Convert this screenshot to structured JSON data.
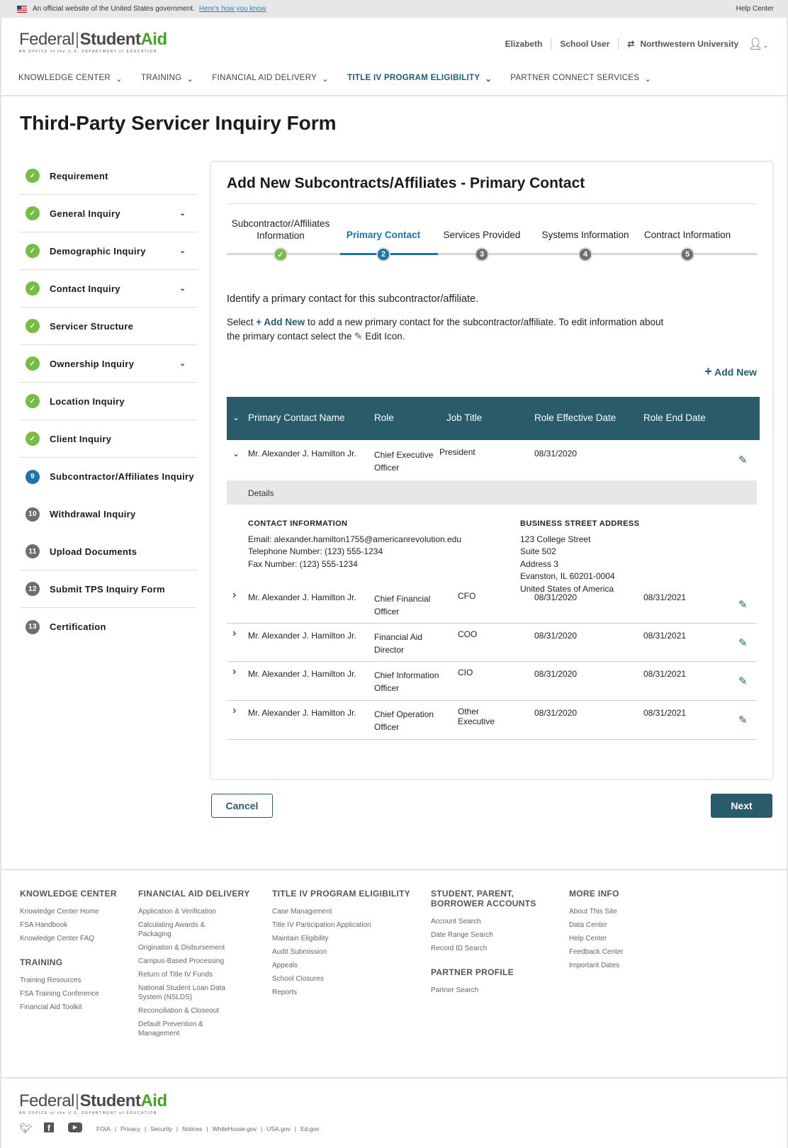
{
  "banner": {
    "text": "An official website of the United States government.",
    "link": "Here's how you know",
    "help": "Help Center"
  },
  "logo": {
    "federal": "Federal",
    "student": "Student",
    "aid": "Aid",
    "sub": "AN OFFICE of the U.S. DEPARTMENT of EDUCATION"
  },
  "user": {
    "name": "Elizabeth",
    "role": "School User",
    "org": "Northwestern University"
  },
  "nav": [
    "KNOWLEDGE CENTER",
    "TRAINING",
    "FINANCIAL AID DELIVERY",
    "TITLE IV PROGRAM ELIGIBILITY",
    "PARTNER CONNECT SERVICES"
  ],
  "page_title": "Third-Party Servicer Inquiry Form",
  "sidebar": [
    {
      "label": "Requirement",
      "status": "done",
      "badge": "",
      "chevron": false
    },
    {
      "label": "General Inquiry",
      "status": "done",
      "badge": "",
      "chevron": true
    },
    {
      "label": "Demographic Inquiry",
      "status": "done",
      "badge": "",
      "chevron": true
    },
    {
      "label": "Contact Inquiry",
      "status": "done",
      "badge": "",
      "chevron": true
    },
    {
      "label": "Servicer Structure",
      "status": "done",
      "badge": "",
      "chevron": false
    },
    {
      "label": "Ownership Inquiry",
      "status": "done",
      "badge": "",
      "chevron": true
    },
    {
      "label": "Location Inquiry",
      "status": "done",
      "badge": "",
      "chevron": false
    },
    {
      "label": "Client Inquiry",
      "status": "done",
      "badge": "",
      "chevron": false
    },
    {
      "label": "Subcontractor/Affiliates Inquiry",
      "status": "current",
      "badge": "9",
      "chevron": false
    },
    {
      "label": "Withdrawal Inquiry",
      "status": "todo",
      "badge": "10",
      "chevron": false
    },
    {
      "label": "Upload Documents",
      "status": "todo",
      "badge": "11",
      "chevron": false
    },
    {
      "label": "Submit TPS Inquiry Form",
      "status": "todo",
      "badge": "12",
      "chevron": false
    },
    {
      "label": "Certification",
      "status": "todo",
      "badge": "13",
      "chevron": false
    }
  ],
  "card": {
    "title": "Add New Subcontracts/Affiliates - Primary Contact",
    "steps": [
      {
        "label": "Subcontractor/Affiliates Information",
        "num": ""
      },
      {
        "label": "Primary Contact",
        "num": "2"
      },
      {
        "label": "Services Provided",
        "num": "3"
      },
      {
        "label": "Systems Information",
        "num": "4"
      },
      {
        "label": "Contract Information",
        "num": "5"
      }
    ],
    "intro": "Identify a primary contact for this subcontractor/affiliate.",
    "help_pre": "Select",
    "help_link": "+ Add New",
    "help_mid": "to add a new primary contact for the subcontractor/affiliate. To edit information about",
    "help_line2": "the primary contact select the",
    "help_end": "Edit Icon.",
    "add_new": "Add New",
    "columns": [
      "Primary Contact Name",
      "Role",
      "Job Title",
      "Role Effective Date",
      "Role End Date"
    ],
    "rows": [
      {
        "name": "Mr. Alexander J. Hamilton Jr.",
        "role": "Chief Executive Officer",
        "job": "President",
        "eff": "08/31/2020",
        "end": ""
      },
      {
        "name": "Mr. Alexander J. Hamilton Jr.",
        "role": "Chief Financial Officer",
        "job": "CFO",
        "eff": "08/31/2020",
        "end": "08/31/2021"
      },
      {
        "name": "Mr. Alexander J. Hamilton Jr.",
        "role": "Financial Aid Director",
        "job": "COO",
        "eff": "08/31/2020",
        "end": "08/31/2021"
      },
      {
        "name": "Mr. Alexander J. Hamilton Jr.",
        "role": "Chief Information Officer",
        "job": "CIO",
        "eff": "08/31/2020",
        "end": "08/31/2021"
      },
      {
        "name": "Mr. Alexander J. Hamilton Jr.",
        "role": "Chief Operation Officer",
        "job": "Other Executive",
        "eff": "08/31/2020",
        "end": "08/31/2021"
      }
    ],
    "details": {
      "label": "Details",
      "contact_heading": "CONTACT INFORMATION",
      "contact": [
        "Email: alexander.hamilton1755@americanrevolution.edu",
        "Telephone Number: (123) 555-1234",
        "Fax Number: (123) 555-1234"
      ],
      "address_heading": "BUSINESS STREET ADDRESS",
      "address": [
        "123 College Street",
        "Suite 502",
        "Address 3",
        "Evanston, IL 60201-0004",
        "United States of America"
      ]
    }
  },
  "buttons": {
    "cancel": "Cancel",
    "next": "Next"
  },
  "footer": {
    "cols": [
      {
        "sections": [
          {
            "title": "KNOWLEDGE CENTER",
            "links": [
              "Knowledge Center Home",
              "FSA Handbook",
              "Knowledge Center FAQ"
            ]
          },
          {
            "title": "TRAINING",
            "links": [
              "Training Resources",
              "FSA Training Conference",
              "Financial Aid Toolkit"
            ]
          }
        ]
      },
      {
        "sections": [
          {
            "title": "FINANCIAL AID DELIVERY",
            "links": [
              "Application & Verification",
              "Calculating Awards & Packaging",
              "Origination & Disbursement",
              "Campus-Based Processing",
              "Return of Title IV Funds",
              "National Student Loan Data System (NSLDS)",
              "Reconciliation & Closeout",
              "Default Prevention & Management"
            ]
          }
        ]
      },
      {
        "sections": [
          {
            "title": "TITLE IV PROGRAM ELIGIBILITY",
            "links": [
              "Case Management",
              "Title IV Participation Application",
              "Maintain Eligibility",
              "Audit Submission",
              "Appeals",
              "School Closures",
              "Reports"
            ]
          }
        ]
      },
      {
        "sections": [
          {
            "title": "STUDENT, PARENT, BORROWER ACCOUNTS",
            "links": [
              "Account Search",
              "Date Range Search",
              "Record ID Search"
            ]
          },
          {
            "title": "PARTNER PROFILE",
            "links": [
              "Partner Search"
            ]
          }
        ]
      },
      {
        "sections": [
          {
            "title": "MORE INFO",
            "links": [
              "About This Site",
              "Data Center",
              "Help Center",
              "Feedback Center",
              "Important Dates"
            ]
          }
        ]
      }
    ],
    "legal": [
      "FOIA",
      "Privacy",
      "Security",
      "Notices",
      "WhiteHouse.gov",
      "USA.gov",
      "Ed.gov"
    ]
  },
  "colors": {
    "brand_teal": "#2a5b6b",
    "active_blue": "#1e73a8",
    "complete_green": "#76bd45",
    "pending_gray": "#6d6e70"
  }
}
